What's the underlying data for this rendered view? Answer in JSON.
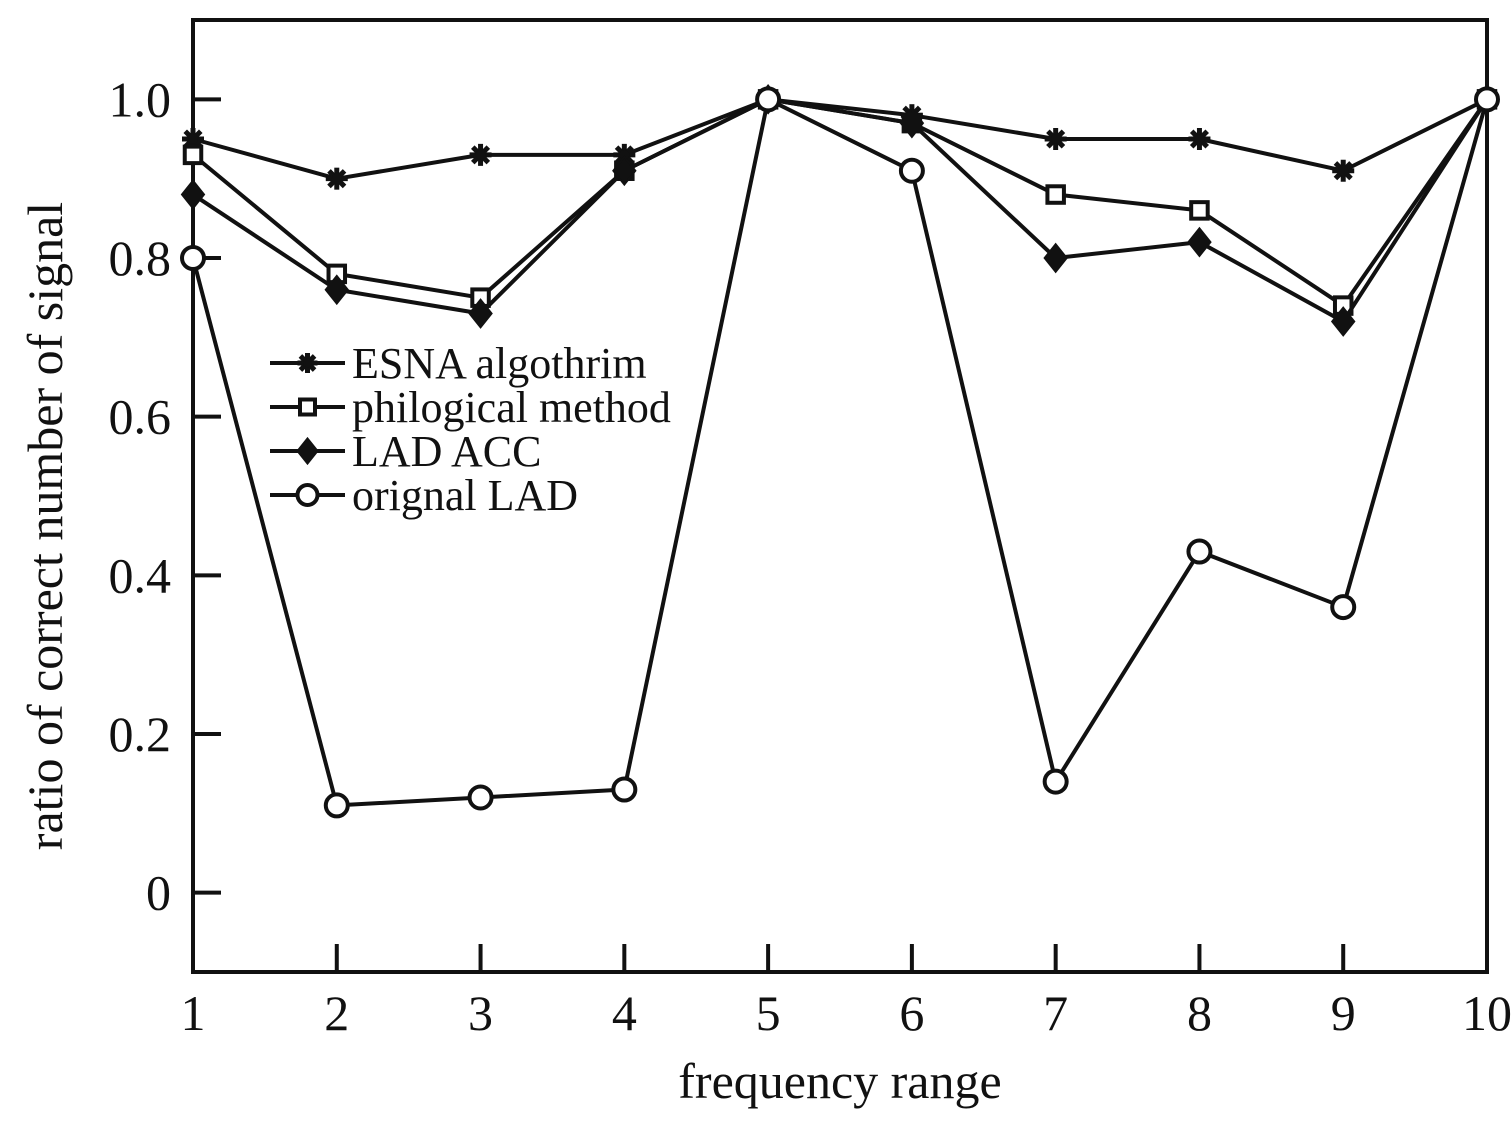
{
  "chart_data": {
    "type": "line",
    "title": "",
    "xlabel": "frequency range",
    "ylabel": "ratio of correct number of signal",
    "x": [
      1,
      2,
      3,
      4,
      5,
      6,
      7,
      8,
      9,
      10
    ],
    "xticks": [
      "1",
      "2",
      "3",
      "4",
      "5",
      "6",
      "7",
      "8",
      "9",
      "10"
    ],
    "yticks": [
      "0",
      "0.2",
      "0.4",
      "0.6",
      "0.8",
      "1.0"
    ],
    "xlim": [
      1,
      10
    ],
    "ylim": [
      -0.1,
      1.1
    ],
    "grid": false,
    "legend_position": "center-left",
    "line_color": "#111111",
    "series": [
      {
        "name": "ESNA algothrim",
        "marker": "star",
        "values": [
          0.95,
          0.9,
          0.93,
          0.93,
          1.0,
          0.98,
          0.95,
          0.95,
          0.91,
          1.0
        ]
      },
      {
        "name": "philogical method",
        "marker": "square",
        "values": [
          0.93,
          0.78,
          0.75,
          0.91,
          1.0,
          0.97,
          0.88,
          0.86,
          0.74,
          1.0
        ]
      },
      {
        "name": "LAD ACC",
        "marker": "diamond",
        "values": [
          0.88,
          0.76,
          0.73,
          0.91,
          1.0,
          0.97,
          0.8,
          0.82,
          0.72,
          1.0
        ]
      },
      {
        "name": "orignal LAD",
        "marker": "circle",
        "values": [
          0.8,
          0.11,
          0.12,
          0.13,
          1.0,
          0.91,
          0.14,
          0.43,
          0.36,
          1.0
        ]
      }
    ]
  }
}
